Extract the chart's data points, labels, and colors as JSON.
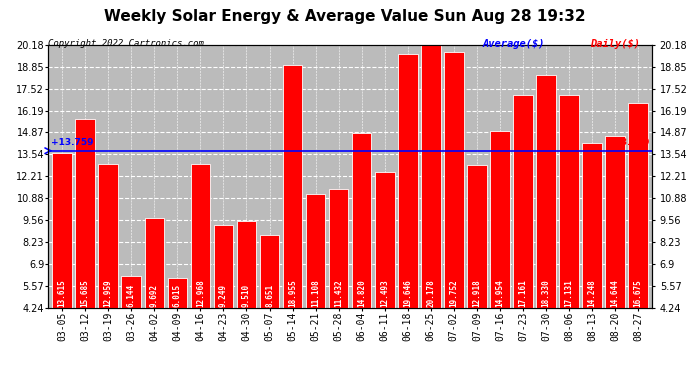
{
  "title": "Weekly Solar Energy & Average Value Sun Aug 28 19:32",
  "copyright": "Copyright 2022 Cartronics.com",
  "legend_average": "Average($)",
  "legend_daily": "Daily($)",
  "categories": [
    "03-05",
    "03-12",
    "03-19",
    "03-26",
    "04-02",
    "04-09",
    "04-16",
    "04-23",
    "04-30",
    "05-07",
    "05-14",
    "05-21",
    "05-28",
    "06-04",
    "06-11",
    "06-18",
    "06-25",
    "07-02",
    "07-09",
    "07-16",
    "07-23",
    "07-30",
    "08-06",
    "08-13",
    "08-20",
    "08-27"
  ],
  "values": [
    13.615,
    15.685,
    12.959,
    6.144,
    9.692,
    6.015,
    12.968,
    9.249,
    9.51,
    8.651,
    18.955,
    11.108,
    11.432,
    14.82,
    12.493,
    19.646,
    20.178,
    19.752,
    12.918,
    14.954,
    17.161,
    18.33,
    17.131,
    14.248,
    14.644,
    16.675
  ],
  "average_value": 13.759,
  "average_label": "13.759",
  "bar_color": "#ff0000",
  "bar_edge_color": "#ffffff",
  "average_line_color": "#0000ff",
  "background_color": "#ffffff",
  "grid_color": "#cccccc",
  "plot_bg_color": "#bbbbbb",
  "ylim_min": 4.24,
  "ylim_max": 20.18,
  "yticks": [
    4.24,
    5.57,
    6.9,
    8.23,
    9.56,
    10.88,
    12.21,
    13.54,
    14.87,
    16.19,
    17.52,
    18.85,
    20.18
  ],
  "title_fontsize": 11,
  "tick_fontsize": 7,
  "value_fontsize": 5.5,
  "bar_width": 0.85
}
